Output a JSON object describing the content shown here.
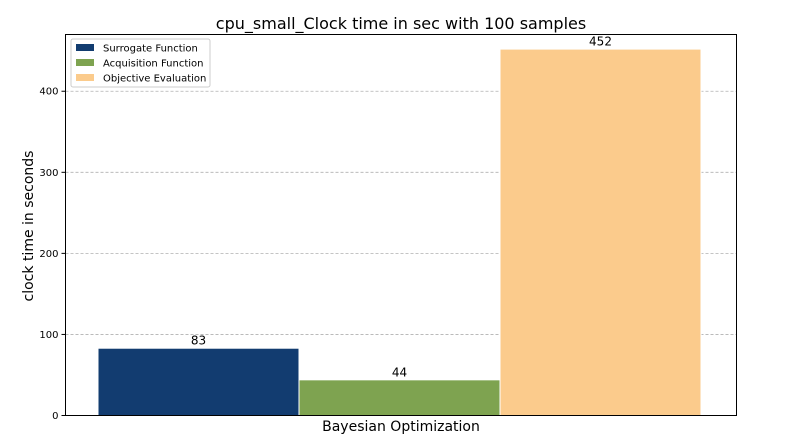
{
  "chart_data": {
    "type": "bar",
    "title": "cpu_small_Clock time in sec with 100 samples",
    "xlabel": "Bayesian Optimization",
    "ylabel": "clock time in seconds",
    "ylim": [
      0,
      470
    ],
    "yticks": [
      0,
      100,
      200,
      300,
      400
    ],
    "grid": true,
    "legend_position": "top-left",
    "series": [
      {
        "name": "Surrogate Function",
        "value": 83,
        "label": "83",
        "color": "#123c70"
      },
      {
        "name": "Acquisition Function",
        "value": 44,
        "label": "44",
        "color": "#7ea350"
      },
      {
        "name": "Objective Evaluation",
        "value": 452,
        "label": "452",
        "color": "#fbcb8c"
      }
    ]
  }
}
